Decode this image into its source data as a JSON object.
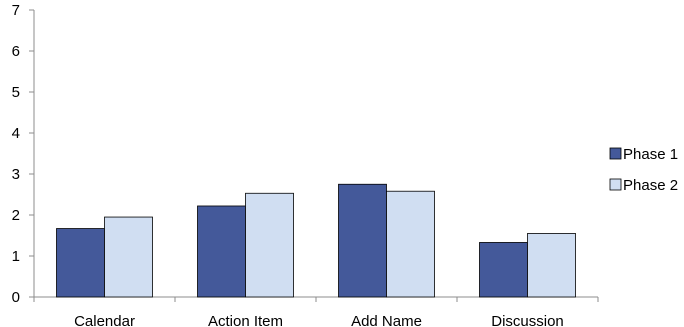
{
  "chart_data": {
    "type": "bar",
    "title": "",
    "xlabel": "",
    "ylabel": "",
    "categories": [
      "Calendar",
      "Action Item",
      "Add Name",
      "Discussion"
    ],
    "series": [
      {
        "name": "Phase 1",
        "color": "#44599a",
        "values": [
          1.67,
          2.22,
          2.75,
          1.33
        ]
      },
      {
        "name": "Phase 2",
        "color": "#d0def2",
        "values": [
          1.95,
          2.53,
          2.58,
          1.55
        ]
      }
    ],
    "ylim": [
      0,
      7
    ],
    "yticks": [
      0,
      1,
      2,
      3,
      4,
      5,
      6,
      7
    ],
    "grid": false,
    "legend": "right"
  }
}
